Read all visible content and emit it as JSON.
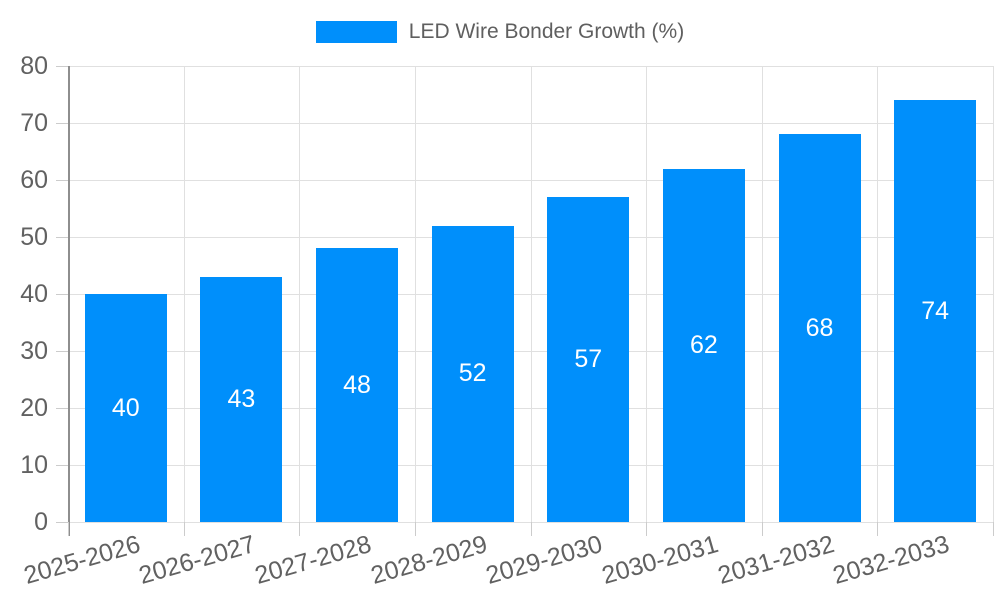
{
  "chart_data": {
    "type": "bar",
    "title": "",
    "legend": "LED Wire Bonder Growth (%)",
    "series_name": "LED Wire Bonder Growth (%)",
    "categories": [
      "2025-2026",
      "2026-2027",
      "2027-2028",
      "2028-2029",
      "2029-2030",
      "2030-2031",
      "2031-2032",
      "2032-2033"
    ],
    "values": [
      40,
      43,
      48,
      52,
      57,
      62,
      68,
      74
    ],
    "xlabel": "",
    "ylabel": "",
    "ylim": [
      0,
      80
    ],
    "ytick_step": 10,
    "ytick_labels": [
      "0",
      "10",
      "20",
      "30",
      "40",
      "50",
      "60",
      "70",
      "80"
    ],
    "grid": true,
    "legend_position": "top",
    "colors": {
      "bar": "#008FFB",
      "value_label": "#FFFFFF",
      "grid_line": "#E0E0E0",
      "axis_line": "#8E8E8E",
      "tick_mark": "#CCCCCC",
      "tick_text": "#616161",
      "legend_text": "#5F5F5F",
      "background": "#FFFFFF"
    }
  }
}
